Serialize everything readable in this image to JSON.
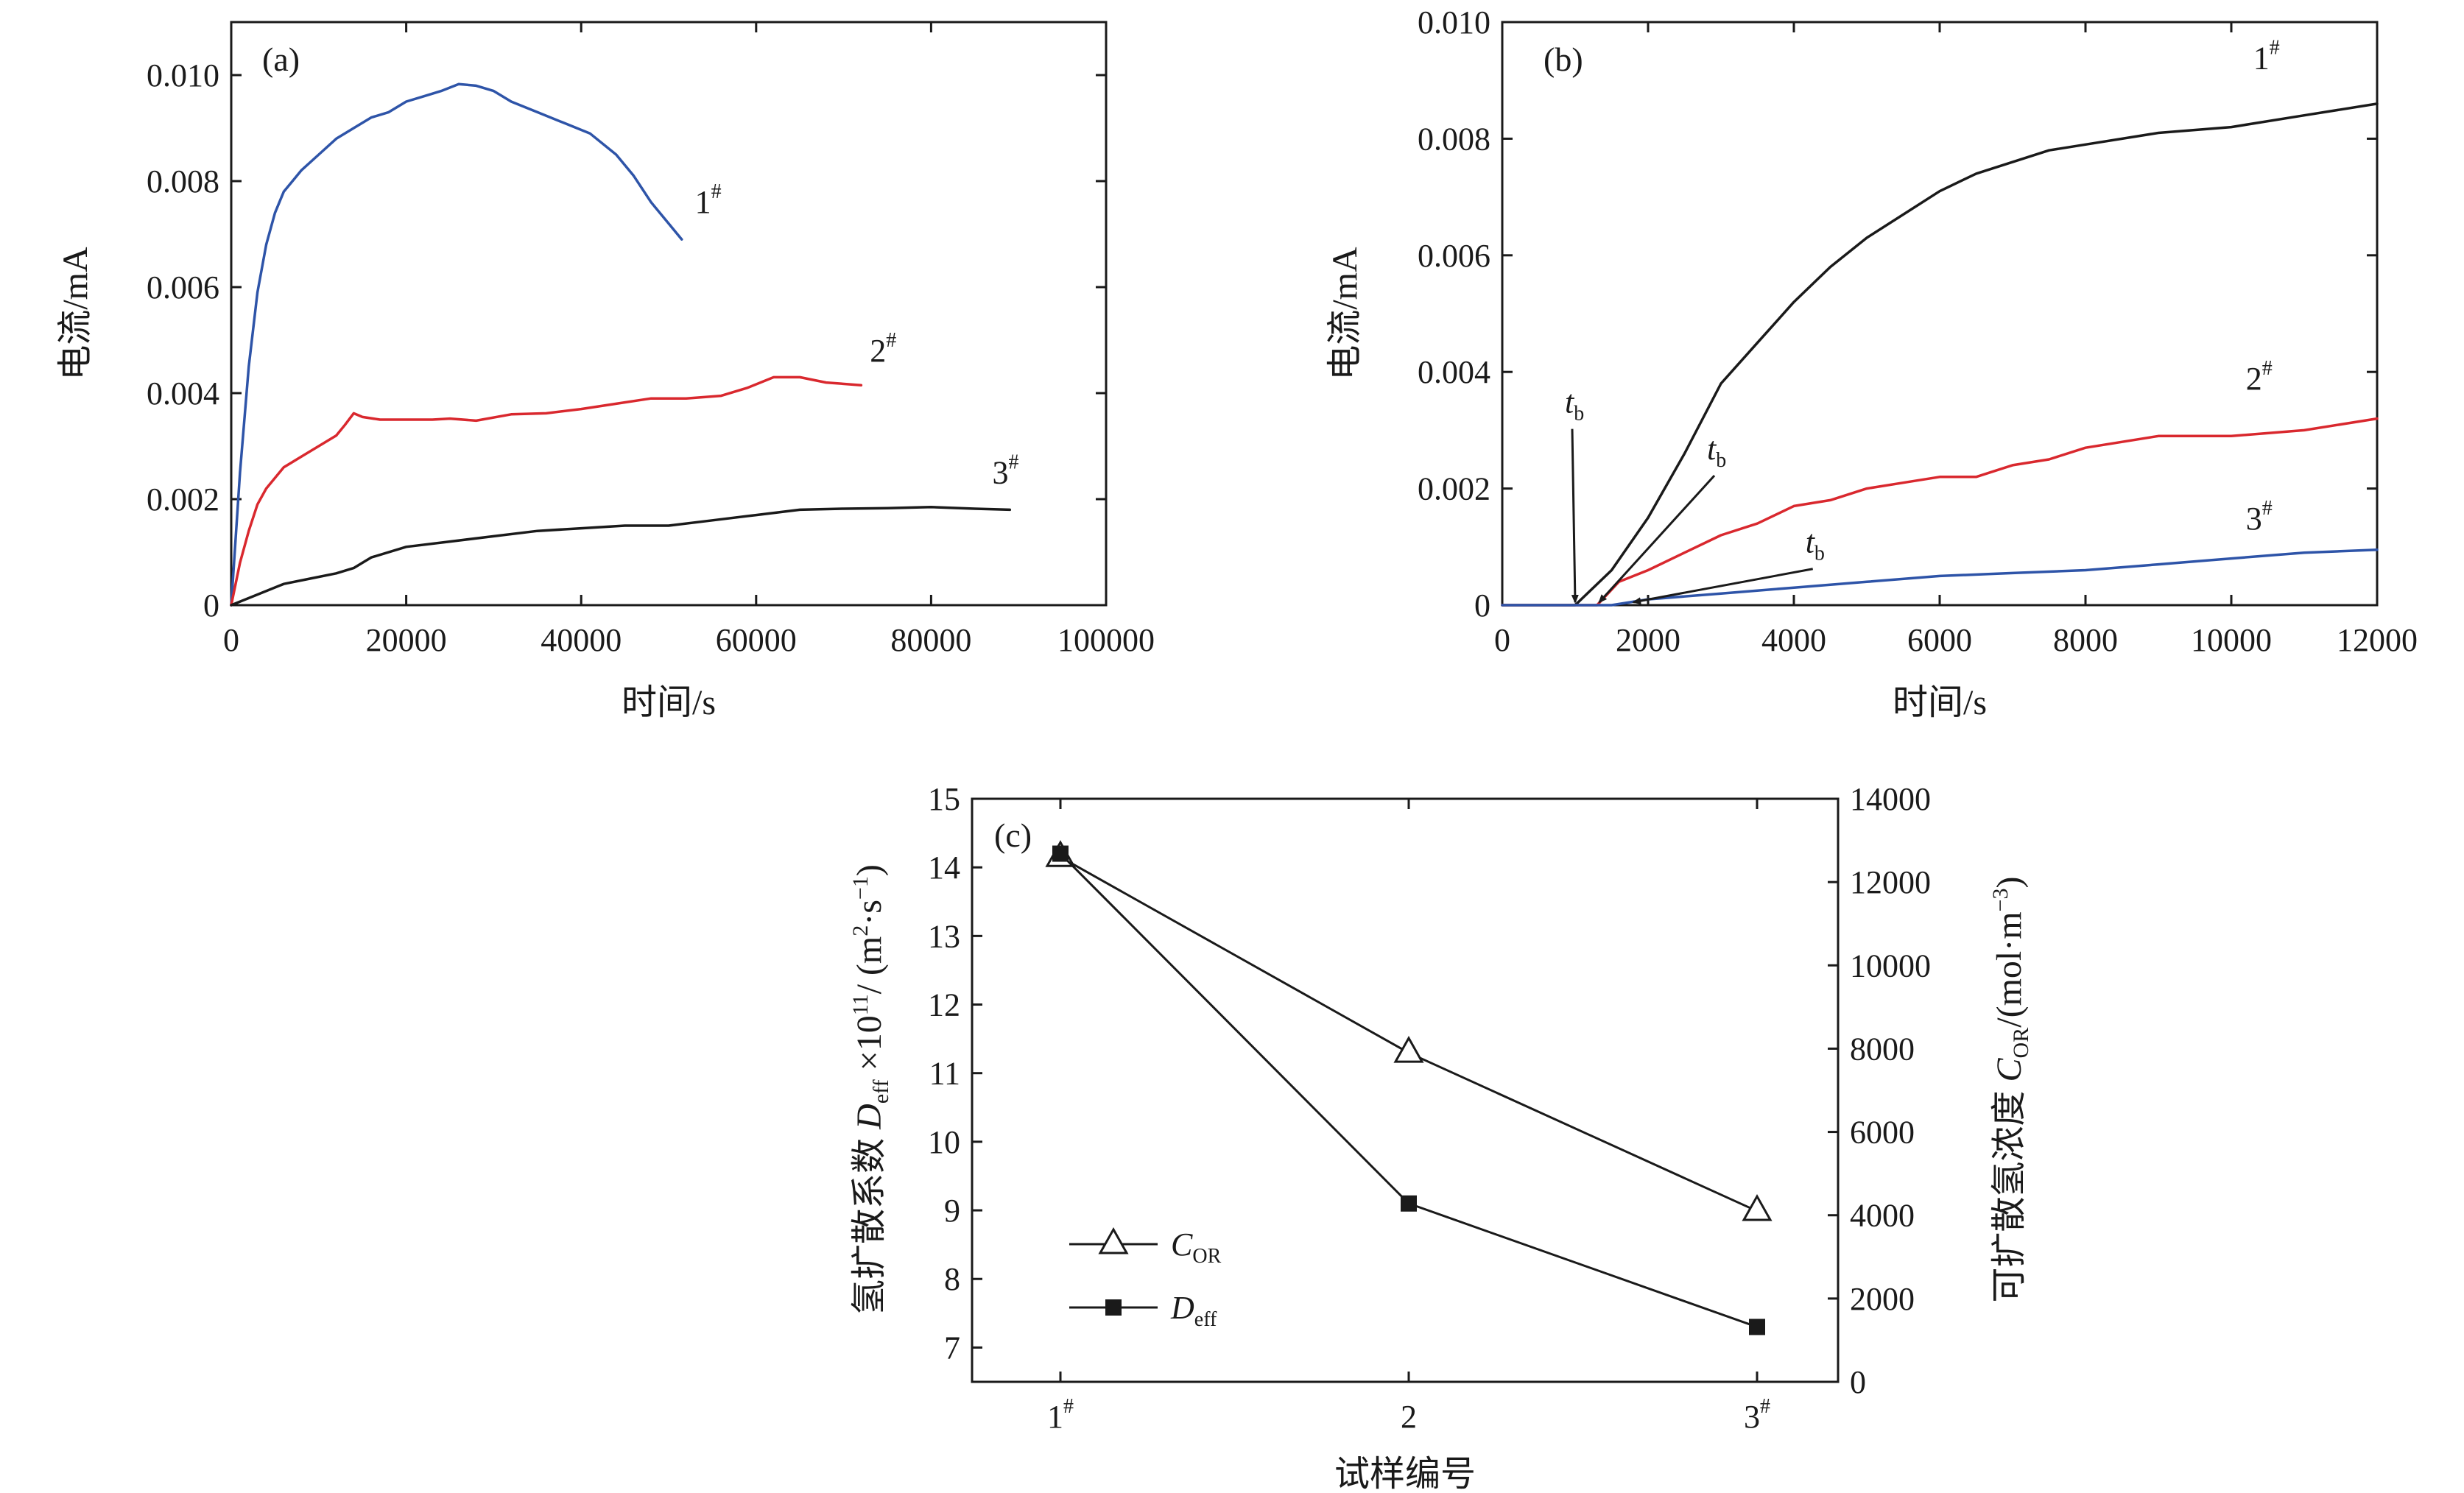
{
  "chart_data": [
    {
      "panel": "(a)",
      "type": "line",
      "xlabel": "时间/s",
      "ylabel": "电流/mA",
      "xlim": [
        0,
        100000
      ],
      "ylim": [
        0,
        0.011
      ],
      "xticks": [
        0,
        20000,
        40000,
        60000,
        80000,
        100000
      ],
      "xtick_labels": [
        "0",
        "20000",
        "40000",
        "60000",
        "80000",
        "100000"
      ],
      "yticks": [
        0,
        0.002,
        0.004,
        0.006,
        0.008,
        0.01
      ],
      "ytick_labels": [
        "0",
        "0.002",
        "0.004",
        "0.006",
        "0.008",
        "0.010"
      ],
      "series": [
        {
          "name": "1#",
          "color": "#2e54a8",
          "x": [
            0,
            1000,
            2000,
            3000,
            4000,
            5000,
            6000,
            7000,
            8000,
            10000,
            12000,
            14000,
            16000,
            18000,
            20000,
            22000,
            24000,
            26000,
            28000,
            30000,
            32000,
            35000,
            38000,
            41000,
            44000,
            46000,
            48000,
            50000,
            51500
          ],
          "y": [
            0,
            0.0025,
            0.0045,
            0.0059,
            0.0068,
            0.0074,
            0.0078,
            0.008,
            0.0082,
            0.0085,
            0.0088,
            0.009,
            0.0092,
            0.0093,
            0.0095,
            0.0096,
            0.0097,
            0.00983,
            0.0098,
            0.0097,
            0.0095,
            0.0093,
            0.0091,
            0.0089,
            0.0085,
            0.0081,
            0.0076,
            0.0072,
            0.0069
          ]
        },
        {
          "name": "2#",
          "color": "#d9282e",
          "x": [
            0,
            1000,
            2000,
            3000,
            4000,
            6000,
            8000,
            10000,
            12000,
            13000,
            14000,
            15000,
            17000,
            20000,
            23000,
            25000,
            28000,
            32000,
            36000,
            40000,
            44000,
            48000,
            52000,
            56000,
            59000,
            62000,
            65000,
            68000,
            72000
          ],
          "y": [
            0,
            0.0008,
            0.0014,
            0.0019,
            0.0022,
            0.0026,
            0.0028,
            0.003,
            0.0032,
            0.0034,
            0.00362,
            0.00355,
            0.0035,
            0.0035,
            0.0035,
            0.00352,
            0.00348,
            0.0036,
            0.00362,
            0.0037,
            0.0038,
            0.0039,
            0.0039,
            0.00395,
            0.0041,
            0.0043,
            0.0043,
            0.0042,
            0.00415
          ]
        },
        {
          "name": "3#",
          "color": "#1a1a1a",
          "x": [
            0,
            3000,
            6000,
            9000,
            12000,
            14000,
            16000,
            20000,
            25000,
            30000,
            35000,
            40000,
            45000,
            50000,
            55000,
            60000,
            65000,
            70000,
            75000,
            80000,
            85000,
            89000
          ],
          "y": [
            0,
            0.0002,
            0.0004,
            0.0005,
            0.0006,
            0.0007,
            0.0009,
            0.0011,
            0.0012,
            0.0013,
            0.0014,
            0.00145,
            0.0015,
            0.0015,
            0.0016,
            0.0017,
            0.0018,
            0.00182,
            0.00183,
            0.00185,
            0.00182,
            0.0018
          ]
        }
      ],
      "labels": [
        {
          "text": "1",
          "sup": "#",
          "x": 53000,
          "y": 0.0074
        },
        {
          "text": "2",
          "sup": "#",
          "x": 73000,
          "y": 0.0046
        },
        {
          "text": "3",
          "sup": "#",
          "x": 87000,
          "y": 0.0023
        }
      ]
    },
    {
      "panel": "(b)",
      "type": "line",
      "xlabel": "时间/s",
      "ylabel": "电流/mA",
      "xlim": [
        0,
        12000
      ],
      "ylim": [
        0,
        0.01
      ],
      "xticks": [
        0,
        2000,
        4000,
        6000,
        8000,
        10000,
        12000
      ],
      "xtick_labels": [
        "0",
        "2000",
        "4000",
        "6000",
        "8000",
        "10000",
        "12000"
      ],
      "yticks": [
        0,
        0.002,
        0.004,
        0.006,
        0.008,
        0.01
      ],
      "ytick_labels": [
        "0",
        "0.002",
        "0.004",
        "0.006",
        "0.008",
        "0.010"
      ],
      "series": [
        {
          "name": "1#",
          "color": "#1a1a1a",
          "x": [
            0,
            1000,
            1500,
            2000,
            2500,
            3000,
            3500,
            4000,
            4500,
            5000,
            5500,
            6000,
            6500,
            7000,
            7500,
            8000,
            9000,
            10000,
            11000,
            12000
          ],
          "y": [
            0,
            0,
            0.0006,
            0.0015,
            0.0026,
            0.0038,
            0.0045,
            0.0052,
            0.0058,
            0.0063,
            0.0067,
            0.0071,
            0.0074,
            0.0076,
            0.0078,
            0.0079,
            0.0081,
            0.0082,
            0.0084,
            0.0086
          ]
        },
        {
          "name": "2#",
          "color": "#d9282e",
          "x": [
            0,
            1300,
            1600,
            2000,
            2500,
            3000,
            3500,
            4000,
            4500,
            5000,
            5500,
            6000,
            6500,
            7000,
            7500,
            8000,
            9000,
            10000,
            11000,
            12000
          ],
          "y": [
            0,
            0,
            0.0004,
            0.0006,
            0.0009,
            0.0012,
            0.0014,
            0.0017,
            0.0018,
            0.002,
            0.0021,
            0.0022,
            0.0022,
            0.0024,
            0.0025,
            0.0027,
            0.0029,
            0.0029,
            0.003,
            0.0032
          ]
        },
        {
          "name": "3#",
          "color": "#2e54a8",
          "x": [
            0,
            1500,
            2000,
            3000,
            4000,
            5000,
            6000,
            7000,
            8000,
            9000,
            10000,
            11000,
            12000
          ],
          "y": [
            0,
            0,
            0.0001,
            0.0002,
            0.0003,
            0.0004,
            0.0005,
            0.00055,
            0.0006,
            0.0007,
            0.0008,
            0.0009,
            0.00095
          ]
        }
      ],
      "labels": [
        {
          "text": "1",
          "sup": "#",
          "x": 10300,
          "y": 0.0092
        },
        {
          "text": "2",
          "sup": "#",
          "x": 10200,
          "y": 0.0037
        },
        {
          "text": "3",
          "sup": "#",
          "x": 10200,
          "y": 0.0013
        }
      ],
      "annotations": [
        {
          "text": "t",
          "sub": "b",
          "label_x": 1000,
          "label_y": 0.0033,
          "arrow_to_x": 1000,
          "arrow_to_y": 0.0
        },
        {
          "text": "t",
          "sub": "b",
          "label_x": 2950,
          "label_y": 0.0025,
          "arrow_to_x": 1330,
          "arrow_to_y": 0.0
        },
        {
          "text": "t",
          "sub": "b",
          "label_x": 4300,
          "label_y": 0.0009,
          "arrow_to_x": 1800,
          "arrow_to_y": 0.0
        }
      ]
    },
    {
      "panel": "(c)",
      "type": "line",
      "xlabel": "试样编号",
      "ylabel_left": "氢扩散系数 D_eff ×10^11/ (m²·s⁻¹)",
      "ylabel_right": "可扩散氢浓度 C_OR/(mol·m⁻³)",
      "categories": [
        "1#",
        "2",
        "3#"
      ],
      "ylim_left": [
        6.5,
        15
      ],
      "yticks_left": [
        7,
        8,
        9,
        10,
        11,
        12,
        13,
        14,
        15
      ],
      "ylim_right": [
        0,
        14000
      ],
      "yticks_right": [
        0,
        2000,
        4000,
        6000,
        8000,
        10000,
        12000,
        14000
      ],
      "series": [
        {
          "name": "C_OR",
          "axis": "right",
          "marker": "open-triangle",
          "values": [
            12600,
            7900,
            4100
          ]
        },
        {
          "name": "D_eff",
          "axis": "left",
          "marker": "filled-square",
          "values": [
            14.2,
            9.1,
            7.3
          ]
        }
      ],
      "legend": {
        "position": "bottom-left",
        "entries": [
          {
            "italic": "C",
            "sub": "OR"
          },
          {
            "italic": "D",
            "sub": "eff"
          }
        ]
      }
    }
  ],
  "text": {
    "a_panel": "(a)",
    "b_panel": "(b)",
    "c_panel": "(c)",
    "a_xlabel": "时间/s",
    "a_ylabel": "电流/mA",
    "b_xlabel": "时间/s",
    "b_ylabel": "电流/mA",
    "c_xlabel": "试样编号",
    "c_ylabel_left_prefix": "氢扩散系数 ",
    "c_ylabel_left_D": "D",
    "c_ylabel_left_sub": "eff",
    "c_ylabel_left_mid": " ×10",
    "c_ylabel_left_exp": "11",
    "c_ylabel_left_unit": "/ (m",
    "c_ylabel_left_unit2": "·s",
    "c_ylabel_left_unit3": ")",
    "c_ylabel_right_prefix": "可扩散氢浓度 ",
    "c_ylabel_right_C": "C",
    "c_ylabel_right_sub": "OR",
    "c_ylabel_right_unit": "/(mol·m",
    "c_ylabel_right_unit2": ")",
    "sup_2": "2",
    "sup_m1": "−1",
    "sup_m3": "−3"
  }
}
